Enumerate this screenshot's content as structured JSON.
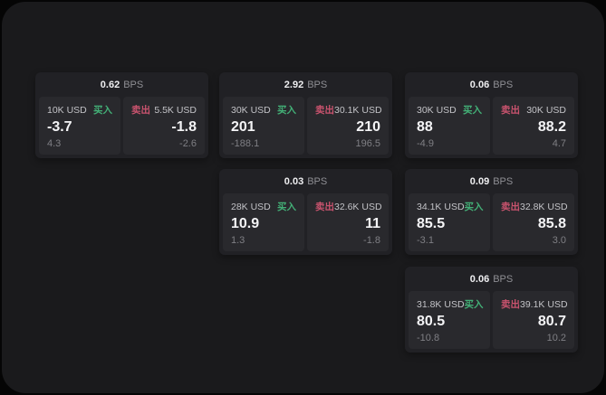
{
  "labels": {
    "bps": "BPS",
    "buy": "买入",
    "sell": "卖出"
  },
  "colors": {
    "buy": "#43b077",
    "sell": "#c9536e",
    "page_bg": "#1a1a1c",
    "card_bg": "#212125",
    "panel_bg": "#29292d"
  },
  "cards": [
    {
      "bps": "0.62",
      "buy": {
        "size": "10K USD",
        "value": "-3.7",
        "sub": "4.3"
      },
      "sell": {
        "size": "5.5K USD",
        "value": "-1.8",
        "sub": "-2.6"
      }
    },
    {
      "bps": "2.92",
      "buy": {
        "size": "30K USD",
        "value": "201",
        "sub": "-188.1"
      },
      "sell": {
        "size": "30.1K USD",
        "value": "210",
        "sub": "196.5"
      }
    },
    {
      "bps": "0.06",
      "buy": {
        "size": "30K USD",
        "value": "88",
        "sub": "-4.9"
      },
      "sell": {
        "size": "30K USD",
        "value": "88.2",
        "sub": "4.7"
      }
    },
    {
      "bps": "0.03",
      "buy": {
        "size": "28K USD",
        "value": "10.9",
        "sub": "1.3"
      },
      "sell": {
        "size": "32.6K USD",
        "value": "11",
        "sub": "-1.8"
      }
    },
    {
      "bps": "0.09",
      "buy": {
        "size": "34.1K USD",
        "value": "85.5",
        "sub": "-3.1"
      },
      "sell": {
        "size": "32.8K USD",
        "value": "85.8",
        "sub": "3.0"
      }
    },
    {
      "bps": "0.06",
      "buy": {
        "size": "31.8K USD",
        "value": "80.5",
        "sub": "-10.8"
      },
      "sell": {
        "size": "39.1K USD",
        "value": "80.7",
        "sub": "10.2"
      }
    }
  ]
}
